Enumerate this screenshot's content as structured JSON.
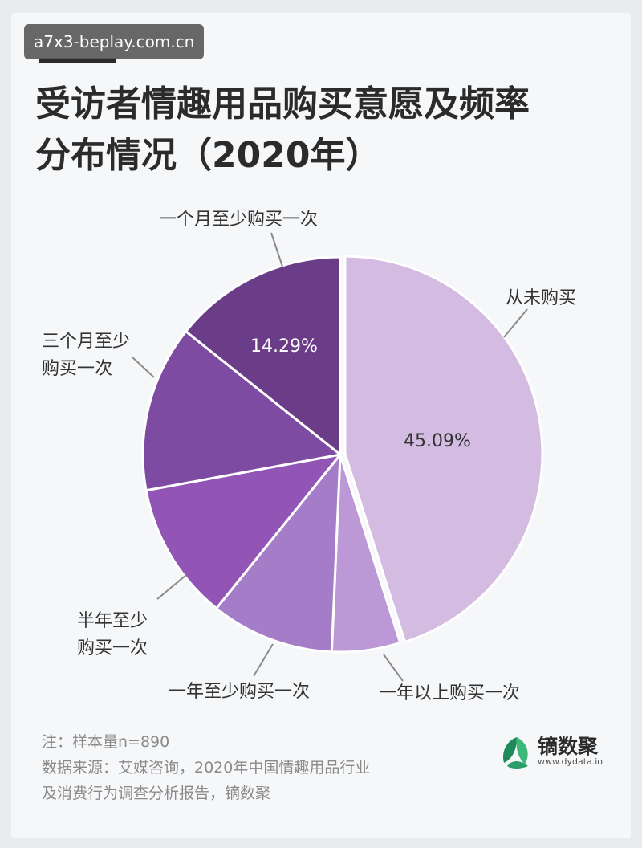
{
  "watermark": "a7x3-beplay.com.cn",
  "title_lines": [
    "受访者情趣用品购买意愿及频率",
    "分布情况（2020年）"
  ],
  "colors": {
    "从未购买": "#d3bbe2",
    "一年以上购买一次": "#bc98d6",
    "一年至少购买一次": "#a57cc7",
    "半年至少购买一次": "#9255b5",
    "三个月至少购买一次": "#7d4ca2",
    "一个月至少购买一次": "#6b3d88",
    "leader": "#8a8a8a",
    "brand_leaf_dark": "#1e8a5a",
    "brand_leaf_light": "#3cb878"
  },
  "chart_data": {
    "type": "pie",
    "title": "受访者情趣用品购买意愿及频率分布情况（2020年）",
    "start_angle": "12 o'clock, clockwise",
    "slices": [
      {
        "key": "never",
        "label_lines": [
          "从未购买"
        ],
        "value": 45.09,
        "value_label": "45.09%",
        "color": "#d3bbe2"
      },
      {
        "key": "over_one_year",
        "label_lines": [
          "一年以上购买一次"
        ],
        "value": 5.6,
        "value_label": "",
        "color": "#bc98d6"
      },
      {
        "key": "yearly",
        "label_lines": [
          "一年至少购买一次"
        ],
        "value": 10.1,
        "value_label": "",
        "color": "#a57cc7"
      },
      {
        "key": "half_year",
        "label_lines": [
          "半年至少",
          "购买一次"
        ],
        "value": 11.3,
        "value_label": "",
        "color": "#9255b5"
      },
      {
        "key": "quarterly",
        "label_lines": [
          "三个月至少",
          "购买一次"
        ],
        "value": 13.62,
        "value_label": "",
        "color": "#7d4ca2"
      },
      {
        "key": "monthly",
        "label_lines": [
          "一个月至少购买一次"
        ],
        "value": 14.29,
        "value_label": "14.29%",
        "color": "#6b3d88"
      }
    ]
  },
  "notes": [
    "注：样本量n=890",
    "数据来源：艾媒咨询，2020年中国情趣用品行业",
    "及消费行为调查分析报告，镝数聚"
  ],
  "brand": {
    "name": "镝数聚",
    "url": "www.dydata.io"
  }
}
